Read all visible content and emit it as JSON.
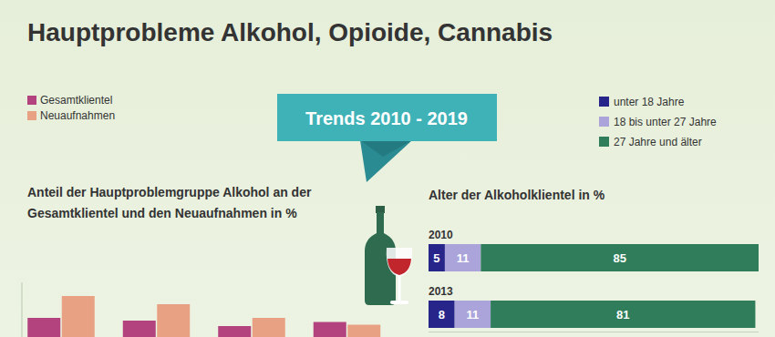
{
  "title": "Hauptprobleme Alkohol, Opioide, Cannabis",
  "banner": "Trends 2010 - 2019",
  "chart_data": [
    {
      "type": "bar",
      "title": "Anteil der Hauptproblemgruppe Alkohol an der Gesamtklientel und den Neuaufnahmen in %",
      "categories": [
        null,
        null,
        null,
        null
      ],
      "series": [
        {
          "name": "Gesamtklientel",
          "color": "#b3437e",
          "values": [
            37,
            36,
            34,
            35.5
          ]
        },
        {
          "name": "Neuaufnahmen",
          "color": "#e8a283",
          "values": [
            45,
            42,
            37,
            34.5
          ]
        }
      ],
      "ylim": [
        30,
        50
      ],
      "yticks": [],
      "tick_labels": false,
      "legend": "top-left"
    },
    {
      "type": "bar",
      "title": "Alter der Alkoholklientel in %",
      "orientation": "horizontal",
      "stacked": true,
      "data_labels": true,
      "categories": [
        "2010",
        "2013"
      ],
      "series": [
        {
          "name": "unter 18 Jahre",
          "color": "#27258a",
          "values": [
            5,
            8
          ]
        },
        {
          "name": "18 bis unter 27 Jahre",
          "color": "#aaa4da",
          "values": [
            11,
            11
          ]
        },
        {
          "name": "27 Jahre und älter",
          "color": "#2f7d5a",
          "values": [
            85,
            81
          ]
        }
      ],
      "xlim": [
        0,
        101
      ],
      "xticks": [],
      "legend": "top-right"
    }
  ]
}
